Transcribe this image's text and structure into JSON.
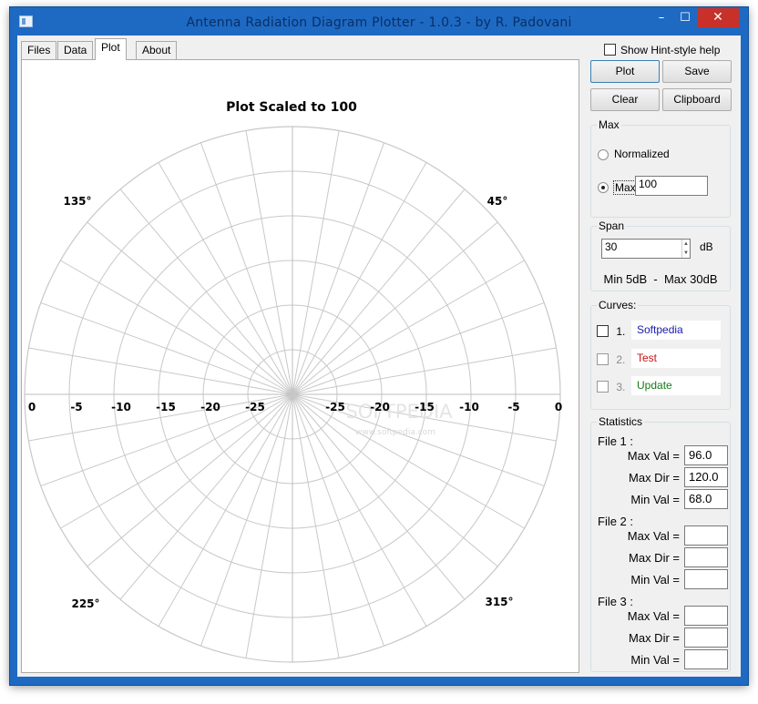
{
  "window": {
    "title": "Antenna Radiation Diagram Plotter - 1.0.3 - by R. Padovani",
    "minimize_glyph": "–",
    "maximize_glyph": "☐",
    "close_glyph": "✕"
  },
  "tabs": [
    {
      "label": "Files",
      "active": false
    },
    {
      "label": "Data",
      "active": false
    },
    {
      "label": "Plot",
      "active": true
    },
    {
      "label": "About",
      "active": false
    }
  ],
  "plot": {
    "title": "Plot Scaled to 100",
    "ring_labels_left": [
      "0",
      "-5",
      "-10",
      "-15",
      "-20",
      "-25"
    ],
    "ring_labels_right": [
      "-25",
      "-20",
      "-15",
      "-10",
      "-5",
      "0"
    ],
    "angle_labels": {
      "a45": "45°",
      "a135": "135°",
      "a225": "225°",
      "a315": "315°"
    },
    "watermark": "SOFTPEDIA",
    "watermark_url": "www.softpedia.com",
    "ring_count": 6,
    "radial_step_deg": 10,
    "grid_color": "#c8c8c8",
    "axis_color": "#bdbdbd"
  },
  "options": {
    "hint_label": "Show Hint-style help",
    "hint_checked": false
  },
  "buttons": {
    "plot": "Plot",
    "save": "Save",
    "clear": "Clear",
    "clipboard": "Clipboard"
  },
  "max_group": {
    "title": "Max",
    "normalized_label": "Normalized",
    "max_label": "Max",
    "max_value": "100",
    "selected": "max"
  },
  "span_group": {
    "title": "Span",
    "span_value": "30",
    "unit": "dB",
    "range_text": "Min 5dB  -  Max 30dB"
  },
  "curves_group": {
    "title": "Curves:",
    "items": [
      {
        "num": "1.",
        "name": "Softpedia",
        "color": "#1a1aa8",
        "enabled": true
      },
      {
        "num": "2.",
        "name": "Test",
        "color": "#c81414",
        "enabled": false
      },
      {
        "num": "3.",
        "name": "Update",
        "color": "#157a15",
        "enabled": false
      }
    ]
  },
  "stats_group": {
    "title": "Statistics",
    "files": [
      {
        "label": "File 1 :",
        "max_val": "96.0",
        "max_dir": "120.0",
        "min_val": "68.0"
      },
      {
        "label": "File 2 :",
        "max_val": "",
        "max_dir": "",
        "min_val": ""
      },
      {
        "label": "File 3 :",
        "max_val": "",
        "max_dir": "",
        "min_val": ""
      }
    ],
    "max_val_label": "Max Val =",
    "max_dir_label": "Max Dir =",
    "min_val_label": "Min Val ="
  }
}
